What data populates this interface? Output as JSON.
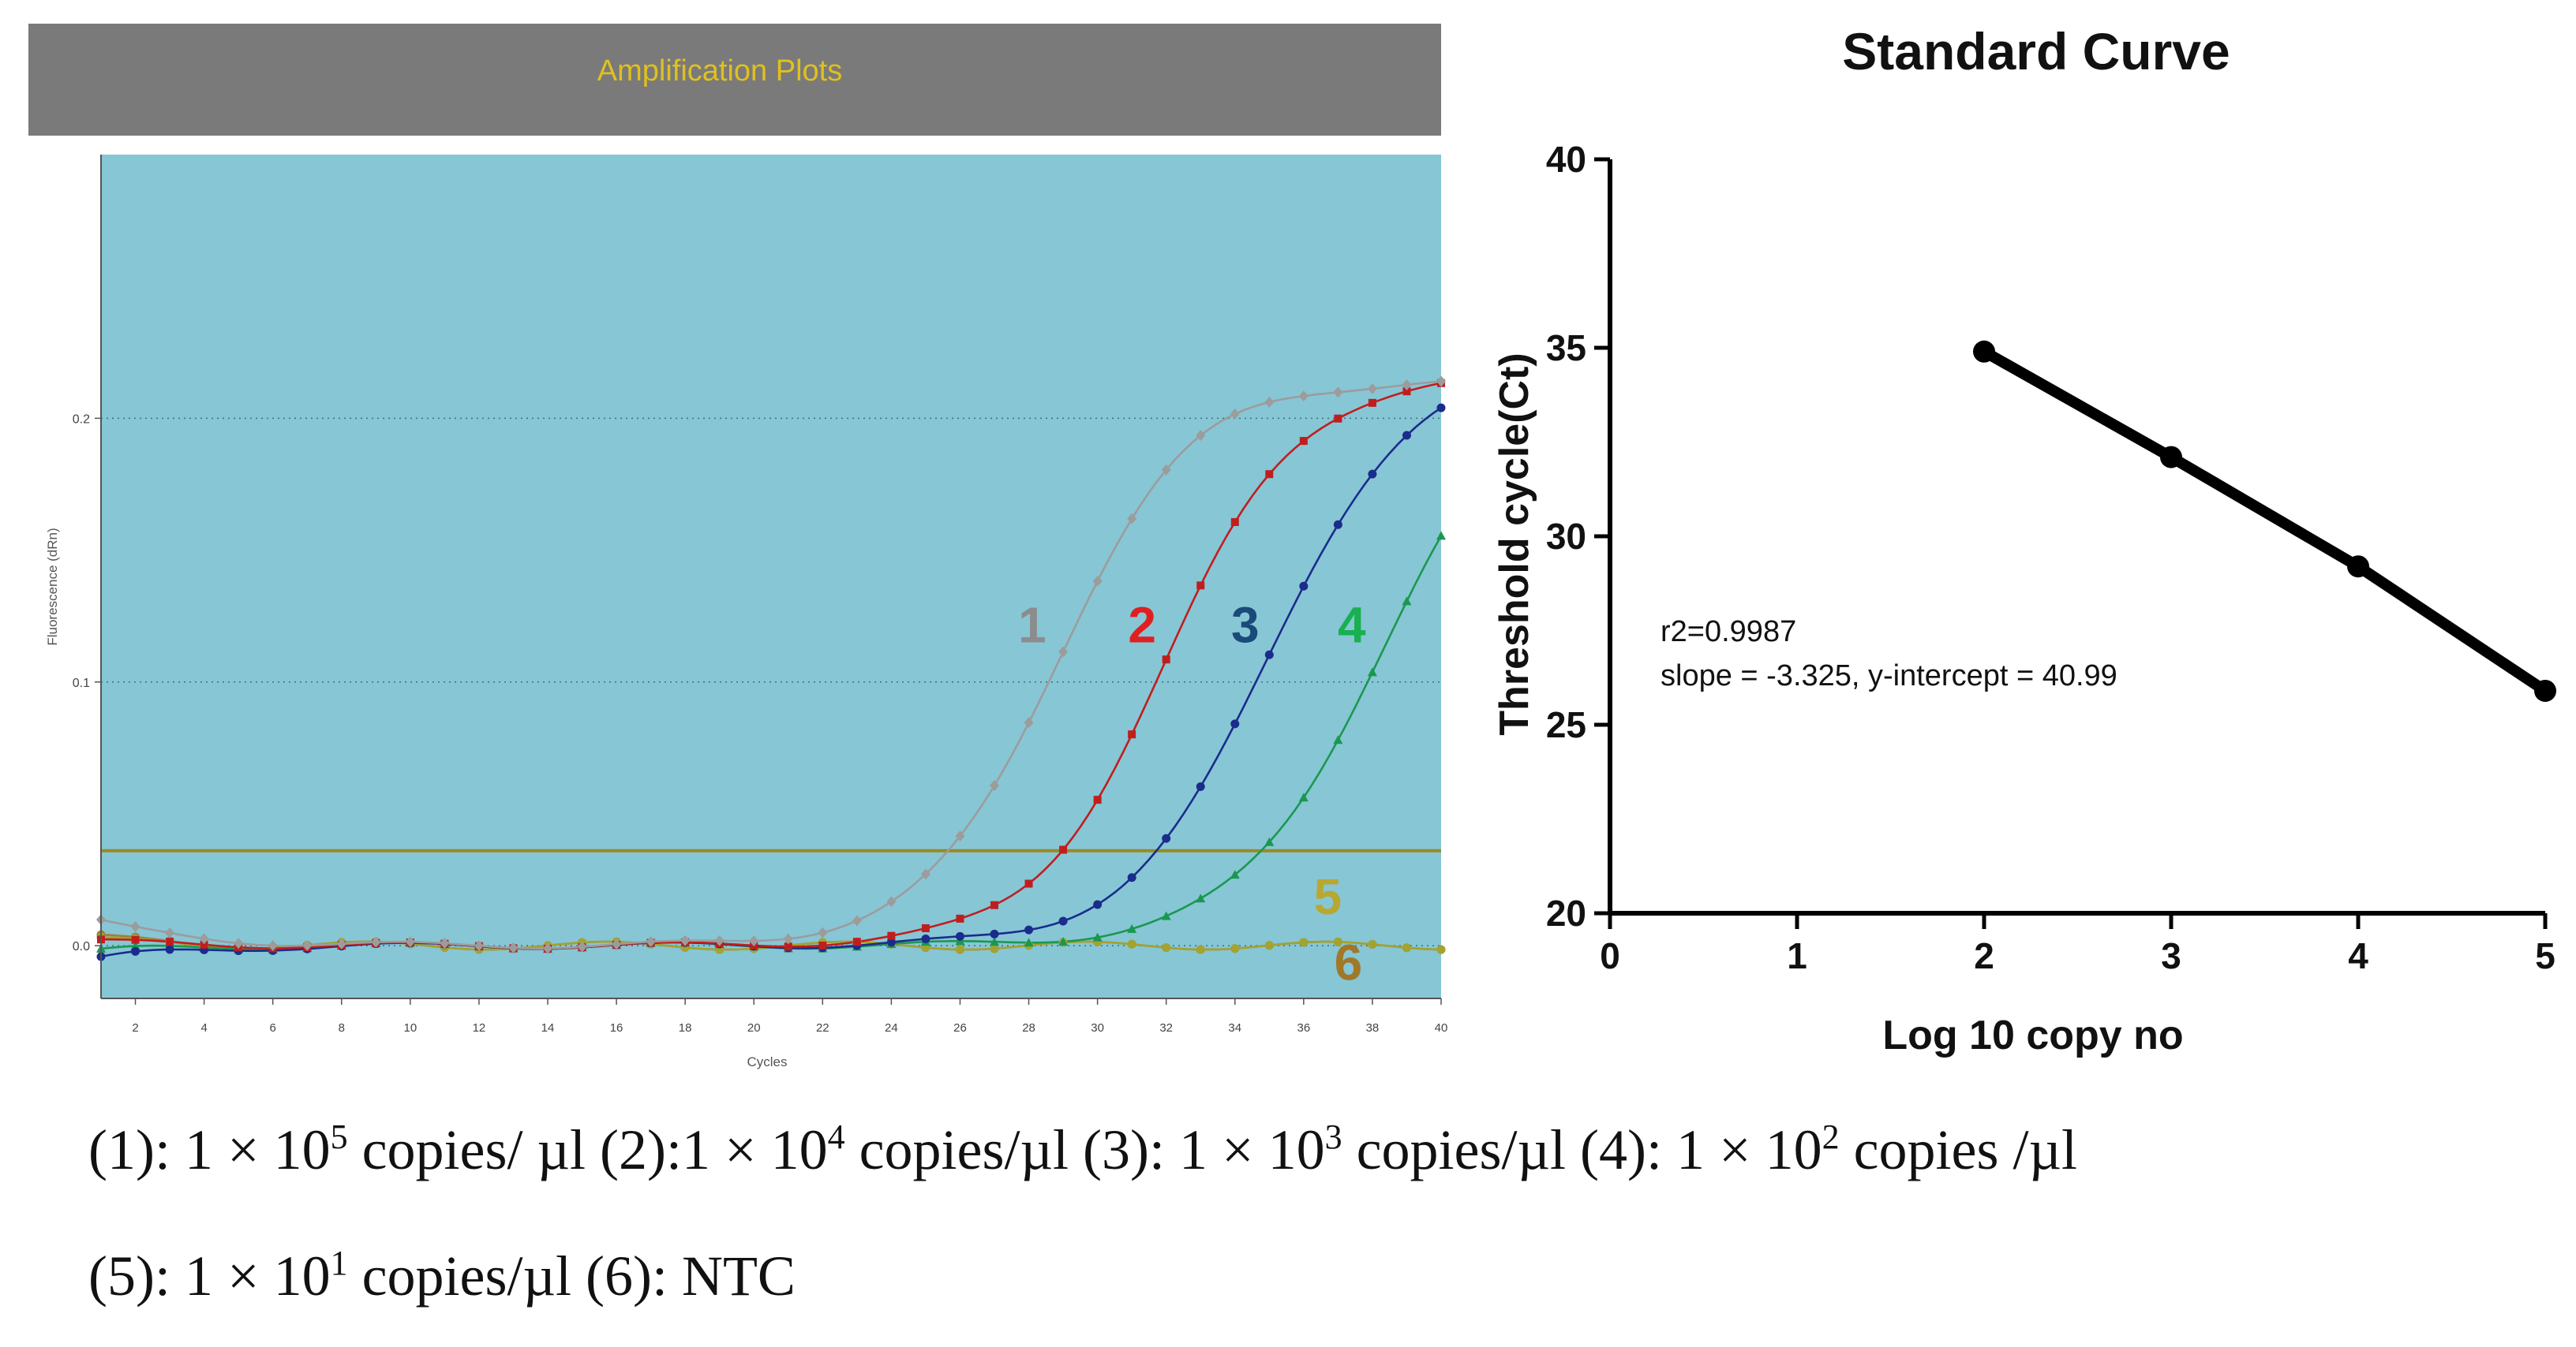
{
  "amplification": {
    "header": "Amplification Plots",
    "ylabel": "Fluorescence (dRn)",
    "xlabel": "Cycles",
    "threshold": 0.036,
    "colors": {
      "bg": "#87c6d5",
      "header_bg": "#7a7a7a",
      "header_text": "#e0c01e",
      "threshold": "#9a8a22",
      "grid": "#3f6f7e"
    }
  },
  "standard": {
    "title": "Standard Curve",
    "xlabel": "Log 10 copy no",
    "ylabel": "Threshold cycle(Ct)",
    "annotation_r2": "r2=0.9987",
    "annotation_eq": "slope = -3.325, y-intercept = 40.99"
  },
  "caption": {
    "c1_label": "(1): 1 × 10",
    "c1_exp": "5",
    "c1_unit": "copies/ µl",
    "c2_label": "(2):1 × 10",
    "c2_exp": "4",
    "c2_unit": "copies/µl",
    "c3_label": "(3): 1 × 10",
    "c3_exp": "3",
    "c3_unit": "copies/µl",
    "c4_label": "(4): 1 × 10",
    "c4_exp": "2",
    "c4_unit": "copies /µl",
    "c5_label": "(5): 1 × 10",
    "c5_exp": "1",
    "c5_unit": "copies/µl",
    "c6_text": "(6): NTC"
  },
  "chart_data": [
    {
      "type": "line",
      "title": "Amplification Plots",
      "xlabel": "Cycles",
      "ylabel": "Fluorescence (dRn)",
      "xlim": [
        1,
        40
      ],
      "ylim": [
        -0.02,
        0.3
      ],
      "x_ticks": [
        2,
        4,
        6,
        8,
        10,
        12,
        14,
        16,
        18,
        20,
        22,
        24,
        26,
        28,
        30,
        32,
        34,
        36,
        38,
        40
      ],
      "y_ticks": [
        0.0,
        0.1,
        0.2
      ],
      "y_tick_labels": [
        "0.0",
        "0.1",
        "0.2"
      ],
      "threshold": 0.036,
      "series": [
        {
          "name": "1",
          "color": "#9c9c9c",
          "marker": "diamond",
          "plateau": 0.214,
          "midpoint": 28.8,
          "slope": 0.52,
          "baseline_start": 0.009,
          "label_x": 28.1,
          "label_y": 0.115
        },
        {
          "name": "2",
          "color": "#c01e1e",
          "marker": "square",
          "plateau": 0.216,
          "midpoint": 32.0,
          "slope": 0.52,
          "baseline_start": 0.0015,
          "label_x": 31.3,
          "label_y": 0.115
        },
        {
          "name": "3",
          "color": "#1a2c8c",
          "marker": "circle",
          "plateau": 0.22,
          "midpoint": 35.0,
          "slope": 0.5,
          "baseline_start": -0.005,
          "label_x": 34.3,
          "label_y": 0.115
        },
        {
          "name": "4",
          "color": "#1a9850",
          "marker": "triangle",
          "plateau": 0.22,
          "midpoint": 38.2,
          "slope": 0.48,
          "baseline_start": -0.002,
          "label_x": 37.4,
          "label_y": 0.115
        },
        {
          "name": "5",
          "color": "#a3a330",
          "marker": "circle",
          "plateau": 0,
          "midpoint": 0,
          "slope": 0,
          "baseline_start": 0.002,
          "label_x": 36.7,
          "label_y": 0.012
        },
        {
          "name": "6",
          "color": "#a08030",
          "marker": "circle",
          "plateau": 0,
          "midpoint": 0,
          "slope": 0,
          "baseline_start": 0.003,
          "label_x": 37.3,
          "label_y": -0.013
        }
      ],
      "label_colors": [
        "#8c8c8c",
        "#e02020",
        "#1a4a78",
        "#18b050",
        "#b8a830",
        "#a07828"
      ]
    },
    {
      "type": "line",
      "title": "Standard Curve",
      "xlabel": "Log 10 copy no",
      "ylabel": "Threshold cycle(Ct)",
      "xlim": [
        0,
        5
      ],
      "ylim": [
        20,
        40
      ],
      "x_ticks": [
        0,
        1,
        2,
        3,
        4,
        5
      ],
      "y_ticks": [
        20,
        25,
        30,
        35,
        40
      ],
      "points": [
        {
          "x": 2,
          "y": 34.9
        },
        {
          "x": 3,
          "y": 32.1
        },
        {
          "x": 4,
          "y": 29.2
        },
        {
          "x": 5,
          "y": 25.9
        }
      ],
      "r2": 0.9987,
      "slope": -3.325,
      "intercept": 40.99
    }
  ]
}
